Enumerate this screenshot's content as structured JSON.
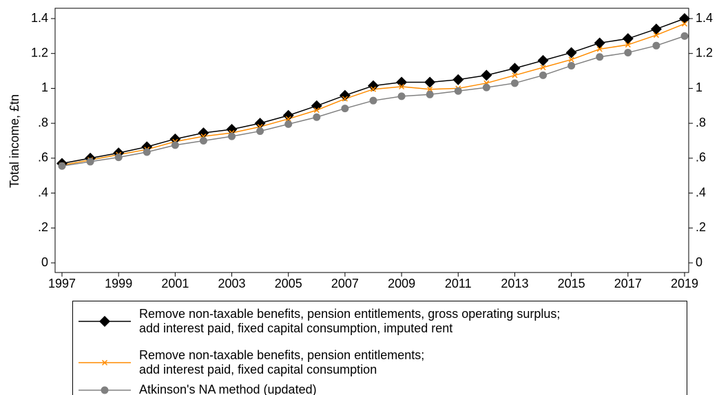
{
  "chart_data": {
    "type": "line",
    "y_label": "Total income, £tn",
    "x": [
      1997,
      1998,
      1999,
      2000,
      2001,
      2002,
      2003,
      2004,
      2005,
      2006,
      2007,
      2008,
      2009,
      2010,
      2011,
      2012,
      2013,
      2014,
      2015,
      2016,
      2017,
      2018,
      2019
    ],
    "xlim": [
      1997,
      2019
    ],
    "xticks": [
      1997,
      1999,
      2001,
      2003,
      2005,
      2007,
      2009,
      2011,
      2013,
      2015,
      2017,
      2019
    ],
    "ylim": [
      0,
      1.4
    ],
    "yticks": [
      0,
      {
        "value": 0.2,
        "label": ".2"
      },
      {
        "value": 0.4,
        "label": ".4"
      },
      {
        "value": 0.6,
        "label": ".6"
      },
      {
        "value": 0.8,
        "label": ".8"
      },
      1,
      1.2,
      1.4
    ],
    "y2lim": [
      0,
      1.4
    ],
    "y2ticks": [
      0,
      {
        "value": 0.2,
        "label": ".2"
      },
      {
        "value": 0.4,
        "label": ".4"
      },
      {
        "value": 0.6,
        "label": ".6"
      },
      {
        "value": 0.8,
        "label": ".8"
      },
      1,
      1.2,
      1.4
    ],
    "legend": "bottom",
    "series": [
      {
        "name": "Remove non-taxable benefits, pension entitlements, gross operating surplus;\nadd interest paid, fixed capital consumption, imputed rent",
        "color": "#000000",
        "marker": "diamond",
        "values": [
          0.57,
          0.6,
          0.63,
          0.665,
          0.71,
          0.745,
          0.765,
          0.8,
          0.845,
          0.9,
          0.96,
          1.015,
          1.035,
          1.035,
          1.05,
          1.075,
          1.115,
          1.16,
          1.205,
          1.26,
          1.285,
          1.34,
          1.4
        ]
      },
      {
        "name": "Remove non-taxable benefits, pension entitlements;\nadd interest paid, fixed capital consumption",
        "color": "#ff8c00",
        "marker": "x",
        "values": [
          0.56,
          0.59,
          0.62,
          0.65,
          0.695,
          0.725,
          0.745,
          0.78,
          0.825,
          0.875,
          0.94,
          0.995,
          1.01,
          0.995,
          1.0,
          1.03,
          1.075,
          1.12,
          1.165,
          1.225,
          1.25,
          1.305,
          1.37
        ]
      },
      {
        "name": "Atkinson's NA method (updated)",
        "color": "#808080",
        "marker": "circle",
        "values": [
          0.555,
          0.58,
          0.605,
          0.635,
          0.675,
          0.7,
          0.725,
          0.755,
          0.795,
          0.835,
          0.885,
          0.93,
          0.955,
          0.965,
          0.985,
          1.005,
          1.03,
          1.075,
          1.13,
          1.18,
          1.205,
          1.245,
          1.3
        ]
      }
    ]
  }
}
